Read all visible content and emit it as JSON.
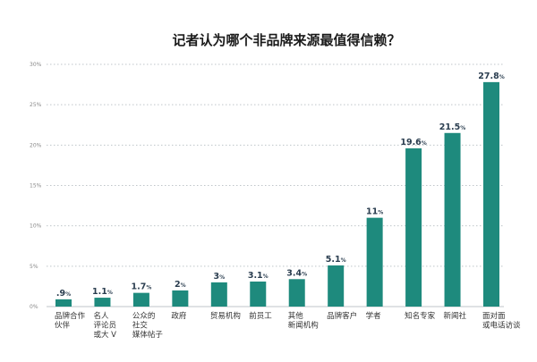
{
  "chart_data": {
    "type": "bar",
    "title": "记者认为哪个非品牌来源最值得信赖？",
    "xlabel": "",
    "ylabel": "",
    "ylim": [
      0,
      30
    ],
    "y_ticks": [
      "0%",
      "5%",
      "10%",
      "15%",
      "20%",
      "25%",
      "30%"
    ],
    "y_tick_values": [
      0,
      5,
      10,
      15,
      20,
      25,
      30
    ],
    "grid": true,
    "bar_color": "#1e8a7d",
    "categories": [
      [
        "品牌合作",
        "伙伴"
      ],
      [
        "名人",
        "评论员",
        "或大 V"
      ],
      [
        "公众的",
        "社交",
        "媒体帖子"
      ],
      [
        "政府"
      ],
      [
        "贸易机构"
      ],
      [
        "前员工"
      ],
      [
        "其他",
        "新闻机构"
      ],
      [
        "品牌客户"
      ],
      [
        "学者"
      ],
      [
        "知名专家"
      ],
      [
        "新闻社"
      ],
      [
        "面对面",
        "或电话访谈"
      ]
    ],
    "value_labels": [
      ".9",
      "1.1",
      "1.7",
      "2",
      "3",
      "3.1",
      "3.4",
      "5.1",
      "11",
      "19.6",
      "21.5",
      "27.8"
    ],
    "value_unit": "%",
    "values": [
      0.9,
      1.1,
      1.7,
      2.0,
      3.0,
      3.1,
      3.4,
      5.1,
      11.0,
      19.6,
      21.5,
      27.8
    ]
  }
}
